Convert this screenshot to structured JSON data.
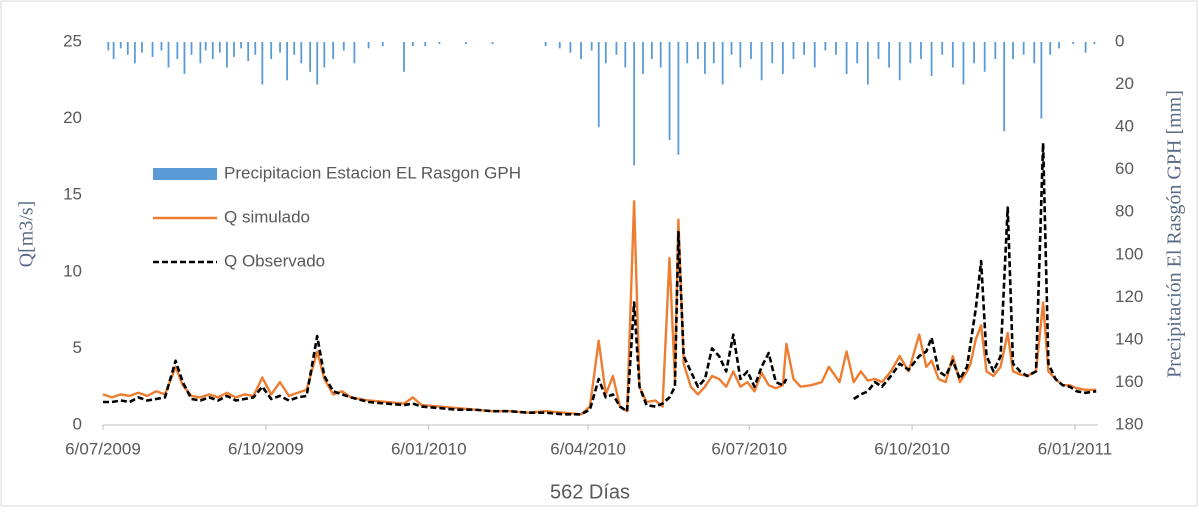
{
  "chart_data": {
    "type": "line",
    "xlabel": "562 Días",
    "ylabel": "Q[m3/s]",
    "y2label": "Precipitación El Rasgón GPH [mm]",
    "xlim": [
      0,
      562
    ],
    "xticks": [
      {
        "value": 0,
        "label": "6/07/2009"
      },
      {
        "value": 92,
        "label": "6/10/2009"
      },
      {
        "value": 184,
        "label": "6/01/2010"
      },
      {
        "value": 274,
        "label": "6/04/2010"
      },
      {
        "value": 365,
        "label": "6/07/2010"
      },
      {
        "value": 457,
        "label": "6/10/2010"
      },
      {
        "value": 549,
        "label": "6/01/2011"
      }
    ],
    "ylim": [
      0,
      25
    ],
    "yticks": [
      0,
      5,
      10,
      15,
      20,
      25
    ],
    "y2lim": [
      0,
      180
    ],
    "y2ticks": [
      0,
      20,
      40,
      60,
      80,
      100,
      120,
      140,
      160,
      180
    ],
    "y2_inverted": true,
    "legend": "upper left",
    "x": [
      0,
      5,
      10,
      15,
      20,
      25,
      30,
      35,
      41,
      45,
      50,
      55,
      60,
      65,
      70,
      75,
      80,
      85,
      90,
      95,
      100,
      105,
      110,
      115,
      121,
      125,
      130,
      135,
      140,
      150,
      160,
      170,
      175,
      180,
      190,
      200,
      210,
      220,
      230,
      240,
      250,
      260,
      270,
      275,
      280,
      284,
      288,
      292,
      296,
      300,
      303,
      307,
      312,
      316,
      320,
      323,
      325,
      328,
      332,
      336,
      340,
      344,
      348,
      352,
      356,
      360,
      364,
      368,
      372,
      376,
      380,
      384,
      386,
      390,
      394,
      400,
      406,
      410,
      416,
      420,
      424,
      428,
      432,
      436,
      440,
      445,
      450,
      455,
      461,
      465,
      468,
      472,
      476,
      480,
      484,
      488,
      490,
      493,
      496,
      499,
      503,
      507,
      511,
      514,
      518,
      522,
      527,
      531,
      534,
      538,
      542,
      546,
      550,
      555,
      561
    ],
    "series": [
      {
        "name": "Precipitacion Estacion  EL Rasgon GPH",
        "color": "#5b9bd5",
        "style": "bar",
        "axis": "y2",
        "x": [
          3,
          6,
          10,
          14,
          18,
          22,
          28,
          33,
          37,
          42,
          46,
          50,
          55,
          58,
          62,
          66,
          70,
          74,
          78,
          82,
          86,
          90,
          95,
          100,
          104,
          108,
          112,
          117,
          121,
          125,
          130,
          136,
          142,
          150,
          158,
          170,
          175,
          182,
          190,
          205,
          220,
          250,
          258,
          264,
          270,
          276,
          280,
          284,
          290,
          295,
          300,
          305,
          310,
          315,
          320,
          325,
          330,
          336,
          340,
          345,
          350,
          355,
          360,
          366,
          372,
          378,
          384,
          390,
          396,
          402,
          408,
          414,
          420,
          426,
          432,
          438,
          444,
          450,
          456,
          462,
          468,
          474,
          480,
          486,
          492,
          498,
          504,
          509,
          514,
          520,
          526,
          530,
          535,
          540,
          548,
          555,
          560
        ],
        "values": [
          4,
          8,
          3,
          6,
          10,
          5,
          7,
          4,
          12,
          8,
          15,
          6,
          10,
          4,
          8,
          5,
          12,
          7,
          3,
          9,
          6,
          20,
          8,
          5,
          18,
          6,
          10,
          14,
          20,
          12,
          8,
          4,
          10,
          3,
          2,
          14,
          2,
          2,
          1,
          1,
          1,
          2,
          3,
          5,
          8,
          4,
          40,
          10,
          6,
          12,
          58,
          15,
          8,
          12,
          46,
          53,
          10,
          8,
          15,
          10,
          20,
          6,
          12,
          8,
          18,
          10,
          15,
          8,
          6,
          12,
          4,
          6,
          15,
          10,
          20,
          8,
          12,
          18,
          10,
          8,
          16,
          6,
          12,
          20,
          10,
          14,
          8,
          42,
          8,
          6,
          10,
          36,
          6,
          3,
          1,
          5,
          1
        ]
      },
      {
        "name": "Q simulado",
        "color": "#ed7d31",
        "style": "solid",
        "values": [
          2.0,
          1.8,
          2.0,
          1.9,
          2.1,
          1.9,
          2.2,
          2.0,
          3.8,
          2.6,
          1.9,
          1.8,
          2.0,
          1.8,
          2.1,
          1.8,
          2.0,
          1.9,
          3.1,
          2.0,
          2.8,
          1.9,
          2.1,
          2.3,
          4.8,
          3.0,
          2.0,
          2.2,
          1.8,
          1.6,
          1.5,
          1.4,
          1.8,
          1.3,
          1.2,
          1.1,
          1.0,
          0.9,
          0.9,
          0.8,
          0.9,
          0.8,
          0.7,
          1.2,
          5.5,
          2.0,
          3.2,
          1.2,
          0.9,
          14.6,
          2.5,
          1.5,
          1.6,
          1.2,
          10.9,
          3.0,
          13.4,
          4.0,
          2.5,
          2.0,
          2.5,
          3.2,
          3.0,
          2.5,
          3.5,
          2.5,
          2.8,
          2.2,
          3.4,
          2.6,
          2.4,
          2.6,
          5.3,
          3.0,
          2.5,
          2.6,
          2.8,
          3.8,
          2.8,
          4.8,
          2.8,
          3.5,
          2.9,
          3.0,
          2.8,
          3.5,
          4.5,
          3.5,
          5.9,
          3.8,
          4.2,
          3.0,
          2.8,
          4.5,
          2.8,
          3.5,
          4.0,
          5.6,
          6.5,
          3.5,
          3.2,
          3.8,
          6.0,
          3.5,
          3.3,
          3.2,
          3.5,
          8.0,
          3.5,
          3.0,
          2.6,
          2.6,
          2.4,
          2.3,
          2.3
        ]
      },
      {
        "name": "Q Observado",
        "color": "#000000",
        "style": "dashed",
        "values": [
          1.5,
          1.5,
          1.6,
          1.5,
          1.8,
          1.6,
          1.7,
          1.8,
          4.2,
          2.8,
          1.7,
          1.6,
          1.8,
          1.6,
          1.9,
          1.6,
          1.7,
          1.8,
          2.5,
          1.7,
          1.9,
          1.6,
          1.8,
          1.9,
          5.8,
          3.2,
          2.2,
          2.0,
          1.8,
          1.5,
          1.4,
          1.3,
          1.4,
          1.2,
          1.1,
          1.0,
          1.0,
          0.9,
          0.9,
          0.8,
          0.8,
          0.7,
          0.7,
          1.0,
          3.0,
          1.8,
          2.0,
          1.2,
          0.9,
          8.0,
          2.5,
          1.3,
          1.2,
          1.4,
          1.8,
          2.5,
          12.6,
          4.5,
          3.5,
          2.5,
          3.0,
          5.0,
          4.5,
          3.5,
          5.9,
          3.0,
          3.5,
          2.5,
          3.8,
          4.7,
          2.8,
          2.6,
          3.0,
          null,
          null,
          null,
          null,
          null,
          null,
          null,
          1.7,
          2.0,
          2.2,
          2.8,
          2.5,
          3.2,
          4.0,
          3.6,
          4.5,
          4.8,
          5.7,
          3.5,
          3.2,
          4.2,
          3.0,
          3.8,
          5.3,
          7.6,
          10.7,
          4.5,
          3.5,
          4.5,
          14.2,
          4.0,
          3.5,
          3.2,
          3.5,
          18.4,
          4.0,
          3.0,
          2.6,
          2.5,
          2.2,
          2.1,
          2.2
        ]
      }
    ]
  }
}
